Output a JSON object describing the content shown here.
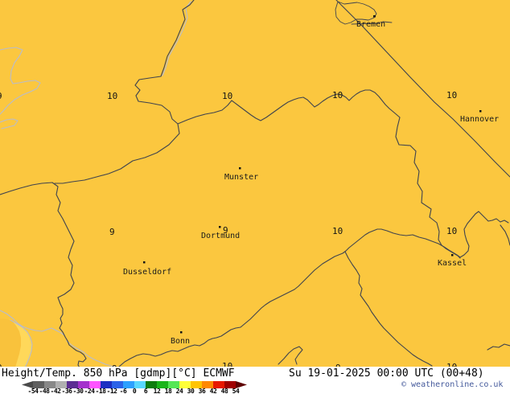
{
  "map": {
    "cities": [
      {
        "name": "Bremen"
      },
      {
        "name": "Hannover"
      },
      {
        "name": "Munster"
      },
      {
        "name": "Dortmund"
      },
      {
        "name": "Dusseldorf"
      },
      {
        "name": "Kassel"
      },
      {
        "name": "Bonn"
      }
    ],
    "temperature_values": [
      {
        "value": "9"
      },
      {
        "value": "10"
      },
      {
        "value": "10"
      },
      {
        "value": "10"
      },
      {
        "value": "10"
      },
      {
        "value": "9"
      },
      {
        "value": "9"
      },
      {
        "value": "10"
      },
      {
        "value": "10"
      },
      {
        "value": "9"
      },
      {
        "value": "9"
      },
      {
        "value": "10"
      },
      {
        "value": "9"
      },
      {
        "value": "10"
      }
    ]
  },
  "footer": {
    "title": "Height/Temp. 850 hPa [gdmp][°C] ECMWF",
    "datetime": "Su 19-01-2025 00:00 UTC (00+48)",
    "copyright": "© weatheronline.co.uk",
    "colorbar_ticks": [
      "-54",
      "-48",
      "-42",
      "-36",
      "-30",
      "-24",
      "-18",
      "-12",
      "-6",
      "0",
      "6",
      "12",
      "18",
      "24",
      "30",
      "36",
      "42",
      "48",
      "54"
    ],
    "colorbar_colors": [
      "#606060",
      "#888888",
      "#B0B0B0",
      "#5C2D92",
      "#A431CC",
      "#FF55FF",
      "#1C2FC2",
      "#2B63E8",
      "#2DA0FF",
      "#59D8FF",
      "#0E7C0E",
      "#1AB41A",
      "#55E655",
      "#FFFF38",
      "#FFC400",
      "#FF8800",
      "#E81800",
      "#A00000"
    ]
  },
  "colors": {
    "map_fill": "#FBC73F",
    "map_fill_light": "#FFD85A",
    "map_fill_dark": "#F9C23C",
    "border_dark": "#3F434E",
    "border_light": "#B9BCCB",
    "copyright_text": "#44599B",
    "colorbar_arrow_left": "#4A4A4A",
    "colorbar_arrow_right": "#5E0000"
  }
}
